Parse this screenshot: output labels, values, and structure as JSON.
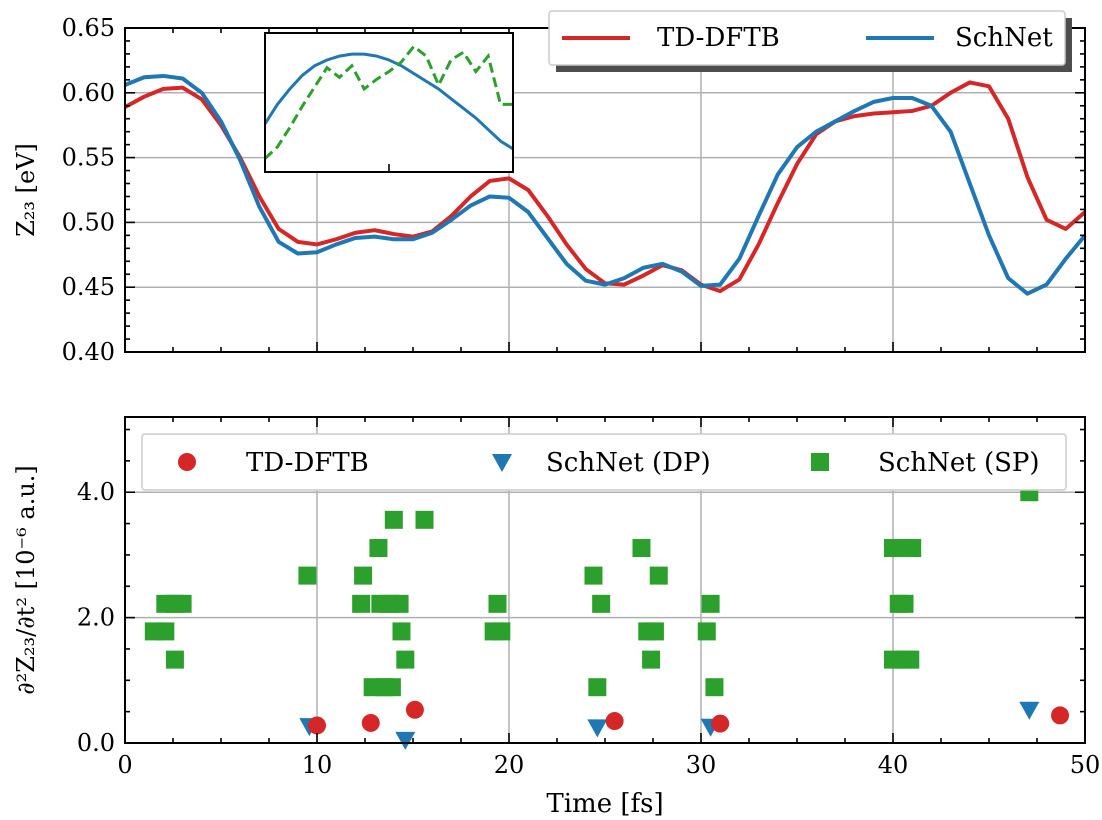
{
  "chart_data": [
    {
      "type": "line",
      "ylabel": "Z₂₃ [eV]",
      "xlim": [
        0,
        50
      ],
      "ylim": [
        0.4,
        0.65
      ],
      "yticks": [
        0.4,
        0.45,
        0.5,
        0.55,
        0.6,
        0.65
      ],
      "grid": true,
      "legend": "top-right",
      "series": [
        {
          "name": "TD-DFTB",
          "color": "#d62728",
          "x": [
            0,
            1,
            2,
            3,
            4,
            5,
            6,
            7,
            8,
            9,
            10,
            11,
            12,
            13,
            14,
            15,
            16,
            17,
            18,
            19,
            20,
            21,
            22,
            23,
            24,
            25,
            26,
            27,
            28,
            29,
            30,
            31,
            32,
            33,
            34,
            35,
            36,
            37,
            38,
            39,
            40,
            41,
            42,
            43,
            44,
            45,
            46,
            47,
            48,
            49,
            50
          ],
          "y": [
            0.589,
            0.597,
            0.603,
            0.604,
            0.595,
            0.575,
            0.55,
            0.52,
            0.495,
            0.485,
            0.483,
            0.487,
            0.492,
            0.494,
            0.491,
            0.489,
            0.493,
            0.505,
            0.52,
            0.532,
            0.534,
            0.525,
            0.505,
            0.483,
            0.464,
            0.453,
            0.452,
            0.459,
            0.467,
            0.463,
            0.452,
            0.447,
            0.456,
            0.483,
            0.515,
            0.545,
            0.568,
            0.578,
            0.582,
            0.584,
            0.585,
            0.586,
            0.59,
            0.6,
            0.608,
            0.605,
            0.58,
            0.535,
            0.502,
            0.495,
            0.508
          ]
        },
        {
          "name": "SchNet",
          "color": "#1f77b4",
          "x": [
            0,
            1,
            2,
            3,
            4,
            5,
            6,
            7,
            8,
            9,
            10,
            11,
            12,
            13,
            14,
            15,
            16,
            17,
            18,
            19,
            20,
            21,
            22,
            23,
            24,
            25,
            26,
            27,
            28,
            29,
            30,
            31,
            32,
            33,
            34,
            35,
            36,
            37,
            38,
            39,
            40,
            41,
            42,
            43,
            44,
            45,
            46,
            47,
            48,
            49,
            50
          ],
          "y": [
            0.606,
            0.612,
            0.613,
            0.611,
            0.6,
            0.578,
            0.548,
            0.512,
            0.485,
            0.476,
            0.477,
            0.483,
            0.488,
            0.489,
            0.487,
            0.487,
            0.492,
            0.502,
            0.513,
            0.52,
            0.519,
            0.508,
            0.488,
            0.468,
            0.455,
            0.452,
            0.457,
            0.465,
            0.468,
            0.462,
            0.451,
            0.452,
            0.472,
            0.505,
            0.537,
            0.558,
            0.57,
            0.578,
            0.586,
            0.593,
            0.596,
            0.596,
            0.59,
            0.57,
            0.53,
            0.49,
            0.457,
            0.445,
            0.452,
            0.472,
            0.49
          ]
        }
      ],
      "inset": {
        "series": [
          {
            "name": "",
            "style": "solid",
            "color": "#1f77b4",
            "x": [
              0,
              1,
              2,
              3,
              4,
              5,
              6,
              7,
              8,
              9,
              10,
              11,
              12,
              13,
              14,
              15,
              16,
              17,
              18,
              19,
              20
            ],
            "y": [
              0.585,
              0.595,
              0.603,
              0.61,
              0.615,
              0.618,
              0.62,
              0.621,
              0.621,
              0.62,
              0.618,
              0.615,
              0.611,
              0.607,
              0.603,
              0.598,
              0.593,
              0.588,
              0.582,
              0.576,
              0.572
            ]
          },
          {
            "name": "",
            "style": "dashed",
            "color": "#2ca02c",
            "x": [
              0,
              1,
              2,
              3,
              4,
              5,
              6,
              7,
              8,
              9,
              10,
              11,
              12,
              13,
              14,
              15,
              16,
              17,
              18,
              19,
              20
            ],
            "y": [
              0.567,
              0.573,
              0.583,
              0.594,
              0.604,
              0.614,
              0.609,
              0.615,
              0.603,
              0.608,
              0.612,
              0.617,
              0.625,
              0.62,
              0.605,
              0.618,
              0.622,
              0.612,
              0.62,
              0.595,
              0.595
            ]
          }
        ]
      }
    },
    {
      "type": "scatter",
      "xlabel": "Time [fs]",
      "ylabel": "∂²Z₂₃/∂t² [10⁻⁶ a.u.]",
      "xlim": [
        0,
        50
      ],
      "ylim": [
        0,
        5.2
      ],
      "xticks": [
        0,
        10,
        20,
        30,
        40,
        50
      ],
      "yticks": [
        0.0,
        2.0,
        4.0
      ],
      "grid": true,
      "legend": "top",
      "series": [
        {
          "name": "TD-DFTB",
          "marker": "circle",
          "color": "#d62728",
          "points": [
            [
              10.0,
              0.28
            ],
            [
              12.8,
              0.32
            ],
            [
              15.1,
              0.53
            ],
            [
              25.5,
              0.35
            ],
            [
              31.0,
              0.31
            ],
            [
              48.7,
              0.44
            ]
          ]
        },
        {
          "name": "SchNet (DP)",
          "marker": "triangle-down",
          "color": "#1f77b4",
          "points": [
            [
              9.6,
              0.27
            ],
            [
              14.6,
              0.05
            ],
            [
              24.6,
              0.25
            ],
            [
              30.5,
              0.26
            ],
            [
              47.1,
              0.53
            ]
          ]
        },
        {
          "name": "SchNet (SP)",
          "marker": "square",
          "color": "#2ca02c",
          "points": [
            [
              1.5,
              1.78
            ],
            [
              2.1,
              1.78
            ],
            [
              2.1,
              2.22
            ],
            [
              2.6,
              2.22
            ],
            [
              3.0,
              2.22
            ],
            [
              2.6,
              1.33
            ],
            [
              9.5,
              2.67
            ],
            [
              12.3,
              2.22
            ],
            [
              12.4,
              2.67
            ],
            [
              12.9,
              0.89
            ],
            [
              13.2,
              3.11
            ],
            [
              13.3,
              2.22
            ],
            [
              13.5,
              0.89
            ],
            [
              13.8,
              2.22
            ],
            [
              13.9,
              0.89
            ],
            [
              14.0,
              3.56
            ],
            [
              14.3,
              2.22
            ],
            [
              14.4,
              1.78
            ],
            [
              14.6,
              1.33
            ],
            [
              15.6,
              3.56
            ],
            [
              19.2,
              1.78
            ],
            [
              19.4,
              2.22
            ],
            [
              19.6,
              1.78
            ],
            [
              24.4,
              2.67
            ],
            [
              24.6,
              0.89
            ],
            [
              24.8,
              2.22
            ],
            [
              26.9,
              3.11
            ],
            [
              27.2,
              1.78
            ],
            [
              27.4,
              1.33
            ],
            [
              27.6,
              1.78
            ],
            [
              27.8,
              2.67
            ],
            [
              30.3,
              1.78
            ],
            [
              30.5,
              2.22
            ],
            [
              30.7,
              0.89
            ],
            [
              40.0,
              3.11
            ],
            [
              40.0,
              1.33
            ],
            [
              40.3,
              2.22
            ],
            [
              40.6,
              3.11
            ],
            [
              40.6,
              2.22
            ],
            [
              40.6,
              1.33
            ],
            [
              40.9,
              1.33
            ],
            [
              41.0,
              3.11
            ],
            [
              47.1,
              4.0
            ]
          ]
        }
      ]
    }
  ]
}
